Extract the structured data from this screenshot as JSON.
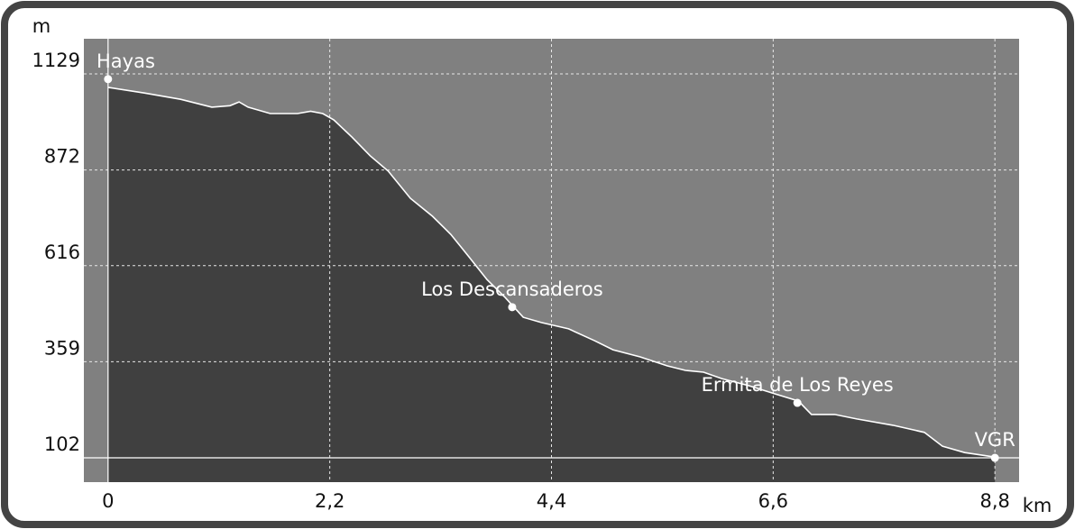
{
  "chart_data": {
    "type": "area",
    "ylabel": "m",
    "xlabel": "km",
    "x": [
      0,
      0.36,
      0.72,
      1.03,
      1.21,
      1.3,
      1.39,
      1.61,
      1.88,
      2.01,
      2.13,
      2.24,
      2.42,
      2.6,
      2.78,
      3.0,
      3.22,
      3.4,
      3.58,
      3.76,
      3.94,
      4.12,
      4.3,
      4.57,
      4.83,
      5.01,
      5.28,
      5.55,
      5.73,
      5.91,
      6.09,
      6.36,
      6.62,
      6.85,
      6.98,
      7.21,
      7.43,
      7.79,
      8.1,
      8.28,
      8.5,
      8.8
    ],
    "values": [
      1093,
      1078,
      1061,
      1040,
      1044,
      1054,
      1040,
      1023,
      1023,
      1029,
      1023,
      1006,
      960,
      910,
      869,
      796,
      748,
      700,
      640,
      579,
      531,
      478,
      464,
      447,
      415,
      391,
      372,
      348,
      336,
      331,
      314,
      295,
      273,
      254,
      218,
      218,
      206,
      189,
      170,
      133,
      116,
      104
    ],
    "waypoints": [
      {
        "label": "Hayas",
        "x": 0,
        "y": 1115
      },
      {
        "label": "Los Descansaderos",
        "x": 4.01,
        "y": 505
      },
      {
        "label": "Ermita de Los Reyes",
        "x": 6.84,
        "y": 249
      },
      {
        "label": "VGR",
        "x": 8.8,
        "y": 102
      }
    ],
    "xlim": [
      -0.24,
      9.04
    ],
    "ylim": [
      37,
      1223
    ],
    "xticks": [
      0,
      {
        "value": 2.2,
        "label": "2,2"
      },
      {
        "value": 4.4,
        "label": "4,4"
      },
      {
        "value": 6.6,
        "label": "6,6"
      },
      {
        "value": 8.8,
        "label": "8,8"
      }
    ],
    "yticks": [
      102,
      359,
      616,
      872,
      1129
    ],
    "grid": true,
    "fill_color": "#404040",
    "line_color": "#ffffff",
    "plot_background": "#808080"
  }
}
